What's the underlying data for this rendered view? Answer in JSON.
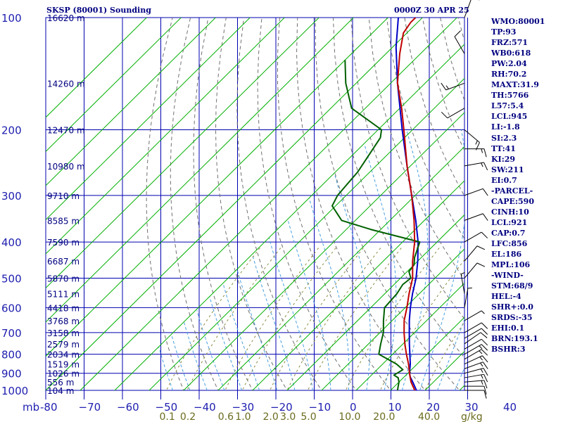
{
  "header": {
    "station": "SKSP (80001) Sounding",
    "time": "0000Z 30 APR 25"
  },
  "indices": [
    "WMO:80001",
    "TP:93",
    "FRZ:571",
    "WB0:618",
    "PW:2.04",
    "RH:70.2",
    "MAXT:31.9",
    "TH:5766",
    "L57:5.4",
    "LCL:945",
    "LI:-1.8",
    "SI:2.3",
    "TT:41",
    "KI:29",
    "SW:211",
    "EI:0.7",
    "-PARCEL-",
    "CAPE:590",
    "CINH:10",
    "LCL:921",
    "CAP:0.7",
    "LFC:856",
    "EL:186",
    "MPL:106",
    "-WIND-",
    "STM:68/9",
    "HEL:-4",
    "SHR+:0.0",
    "SRDS:-35",
    "EHI:0.1",
    "BRN:193.1",
    "BSHR:3"
  ],
  "colors": {
    "grid": "#0000b0",
    "isotherm": "#00b000",
    "dry_adiabat": "#707070",
    "moist_adiabat": "#4aa0e0",
    "temperature": "#c00000",
    "dewpoint": "#006000",
    "parcel": "#0000c8",
    "wind": "#000000"
  },
  "chart_data": {
    "type": "skew-t",
    "y_axis_unit_label": "mb",
    "pressure_levels": [
      100,
      200,
      300,
      400,
      500,
      600,
      700,
      800,
      900,
      1000
    ],
    "pressure_tick_labels": [
      "100",
      "200",
      "300",
      "400",
      "500",
      "600",
      "700",
      "800",
      "900",
      "1000"
    ],
    "temperature_ticks": [
      -80,
      -70,
      -60,
      -50,
      -40,
      -30,
      -20,
      -10,
      0,
      10,
      20,
      30,
      40
    ],
    "temperature_tick_labels": [
      "-80",
      "−70",
      "−60",
      "−50",
      "−40",
      "−30",
      "−20",
      "−10",
      "0",
      "10",
      "20",
      "30",
      "40"
    ],
    "xlim": [
      -80,
      40
    ],
    "mixing_ratio_ticks": [
      {
        "label": "0.1",
        "t_base": -45
      },
      {
        "label": "0.2",
        "t_base": -39
      },
      {
        "label": "0.6",
        "t_base": -28
      },
      {
        "label": "1.0",
        "t_base": -23
      },
      {
        "label": "2.0",
        "t_base": -15
      },
      {
        "label": "3.0",
        "t_base": -10
      },
      {
        "label": "5.0",
        "t_base": -4
      },
      {
        "label": "10.0",
        "t_base": 7
      },
      {
        "label": "20.0",
        "t_base": 17
      },
      {
        "label": "40.0",
        "t_base": 30
      }
    ],
    "mixing_ratio_unit": "g/kg",
    "height_labels": [
      {
        "p": 100,
        "label": "16620 m"
      },
      {
        "p": 150,
        "label": "14260 m"
      },
      {
        "p": 200,
        "label": "12470 m"
      },
      {
        "p": 250,
        "label": "10980 m"
      },
      {
        "p": 300,
        "label": "9710 m"
      },
      {
        "p": 350,
        "label": "8585 m"
      },
      {
        "p": 400,
        "label": "7590 m"
      },
      {
        "p": 450,
        "label": "6687 m"
      },
      {
        "p": 500,
        "label": "5870 m"
      },
      {
        "p": 550,
        "label": "5111 m"
      },
      {
        "p": 600,
        "label": "4418 m"
      },
      {
        "p": 650,
        "label": "3768 m"
      },
      {
        "p": 700,
        "label": "3158 m"
      },
      {
        "p": 750,
        "label": "2579 m"
      },
      {
        "p": 800,
        "label": "2034 m"
      },
      {
        "p": 850,
        "label": "1519 m"
      },
      {
        "p": 900,
        "label": "1026 m"
      },
      {
        "p": 950,
        "label": "556 m"
      },
      {
        "p": 1000,
        "label": "104 m"
      }
    ],
    "temperature_profile": [
      [
        1011,
        28.5
      ],
      [
        1000,
        27.0
      ],
      [
        950,
        23.5
      ],
      [
        925,
        22.0
      ],
      [
        900,
        20.5
      ],
      [
        850,
        17.5
      ],
      [
        800,
        14.0
      ],
      [
        750,
        10.5
      ],
      [
        700,
        7.0
      ],
      [
        650,
        3.5
      ],
      [
        600,
        0.5
      ],
      [
        550,
        -3.0
      ],
      [
        500,
        -6.5
      ],
      [
        450,
        -11.5
      ],
      [
        400,
        -16.5
      ],
      [
        350,
        -23.0
      ],
      [
        300,
        -31.0
      ],
      [
        250,
        -41.0
      ],
      [
        200,
        -52.5
      ],
      [
        175,
        -59.5
      ],
      [
        150,
        -68.0
      ],
      [
        125,
        -76.0
      ],
      [
        110,
        -81.0
      ],
      [
        103,
        -82.0
      ],
      [
        100,
        -82.0
      ]
    ],
    "dewpoint_profile": [
      [
        1011,
        23.0
      ],
      [
        1000,
        22.0
      ],
      [
        950,
        20.0
      ],
      [
        925,
        18.5
      ],
      [
        910,
        16.5
      ],
      [
        880,
        17.5
      ],
      [
        850,
        14.0
      ],
      [
        800,
        6.0
      ],
      [
        750,
        3.5
      ],
      [
        700,
        1.0
      ],
      [
        650,
        -2.5
      ],
      [
        600,
        -6.0
      ],
      [
        550,
        -6.5
      ],
      [
        520,
        -7.5
      ],
      [
        500,
        -7.0
      ],
      [
        480,
        -9.5
      ],
      [
        460,
        -10.0
      ],
      [
        440,
        -12.0
      ],
      [
        400,
        -15.0
      ],
      [
        370,
        -33.0
      ],
      [
        350,
        -44.0
      ],
      [
        320,
        -51.0
      ],
      [
        300,
        -52.5
      ],
      [
        280,
        -53.0
      ],
      [
        260,
        -53.5
      ],
      [
        230,
        -55.5
      ],
      [
        210,
        -57.0
      ],
      [
        200,
        -59.0
      ],
      [
        175,
        -74.0
      ],
      [
        150,
        -83.0
      ],
      [
        130,
        -90.0
      ]
    ],
    "parcel_profile": [
      [
        1011,
        28.5
      ],
      [
        1000,
        27.5
      ],
      [
        950,
        24.0
      ],
      [
        921,
        21.8
      ],
      [
        900,
        20.5
      ],
      [
        850,
        18.0
      ],
      [
        800,
        15.0
      ],
      [
        750,
        11.8
      ],
      [
        700,
        8.5
      ],
      [
        650,
        5.0
      ],
      [
        600,
        1.5
      ],
      [
        550,
        -2.0
      ],
      [
        500,
        -5.5
      ],
      [
        450,
        -10.0
      ],
      [
        400,
        -15.5
      ],
      [
        350,
        -22.5
      ],
      [
        300,
        -31.0
      ],
      [
        250,
        -41.0
      ],
      [
        200,
        -53.0
      ],
      [
        150,
        -68.0
      ],
      [
        120,
        -79.0
      ],
      [
        100,
        -87.0
      ]
    ],
    "wind_barbs": [
      {
        "p": 1000,
        "dir": 90,
        "spd": 10
      },
      {
        "p": 975,
        "dir": 90,
        "spd": 10
      },
      {
        "p": 950,
        "dir": 85,
        "spd": 15
      },
      {
        "p": 925,
        "dir": 80,
        "spd": 15
      },
      {
        "p": 900,
        "dir": 75,
        "spd": 15
      },
      {
        "p": 875,
        "dir": 70,
        "spd": 15
      },
      {
        "p": 850,
        "dir": 65,
        "spd": 15
      },
      {
        "p": 825,
        "dir": 60,
        "spd": 15
      },
      {
        "p": 800,
        "dir": 60,
        "spd": 15
      },
      {
        "p": 775,
        "dir": 60,
        "spd": 10
      },
      {
        "p": 750,
        "dir": 55,
        "spd": 10
      },
      {
        "p": 725,
        "dir": 60,
        "spd": 10
      },
      {
        "p": 700,
        "dir": 60,
        "spd": 10
      },
      {
        "p": 650,
        "dir": 60,
        "spd": 5
      },
      {
        "p": 600,
        "dir": 10,
        "spd": 5
      },
      {
        "p": 550,
        "dir": 350,
        "spd": 5
      },
      {
        "p": 500,
        "dir": 40,
        "spd": 10
      },
      {
        "p": 450,
        "dir": 40,
        "spd": 10
      },
      {
        "p": 400,
        "dir": 60,
        "spd": 10
      },
      {
        "p": 350,
        "dir": 70,
        "spd": 10
      },
      {
        "p": 300,
        "dir": 70,
        "spd": 10
      },
      {
        "p": 250,
        "dir": 80,
        "spd": 15
      },
      {
        "p": 225,
        "dir": 90,
        "spd": 15
      },
      {
        "p": 200,
        "dir": 130,
        "spd": 15
      },
      {
        "p": 175,
        "dir": 240,
        "spd": 10
      },
      {
        "p": 150,
        "dir": 250,
        "spd": 15
      },
      {
        "p": 125,
        "dir": 330,
        "spd": 10
      },
      {
        "p": 100,
        "dir": 20,
        "spd": 10
      }
    ]
  }
}
